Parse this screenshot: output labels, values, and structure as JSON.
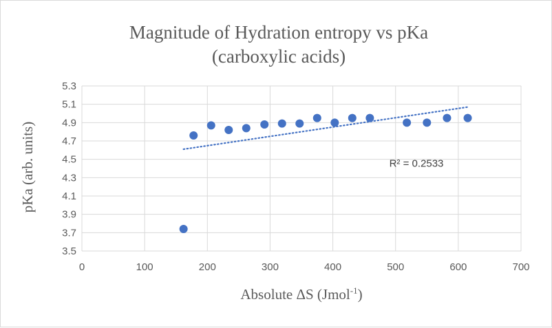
{
  "chart_data": {
    "type": "scatter",
    "title": "Magnitude of Hydration entropy vs pKa",
    "subtitle": "(carboxylic acids)",
    "xlabel_main": "Absolute ΔS (Jmol",
    "xlabel_sup": "-1",
    "xlabel_end": ")",
    "ylabel": "pKa (arb. units)",
    "xlim": [
      0,
      700
    ],
    "ylim": [
      3.5,
      5.3
    ],
    "x_ticks": [
      0,
      100,
      200,
      300,
      400,
      500,
      600,
      700
    ],
    "y_ticks": [
      3.5,
      3.7,
      3.9,
      4.1,
      4.3,
      4.5,
      4.7,
      4.9,
      5.1,
      5.3
    ],
    "grid": "both",
    "legend": "none",
    "marker_color": "#4472c4",
    "trendline_color": "#4472c4",
    "points": [
      {
        "x": 162,
        "y": 3.74
      },
      {
        "x": 178,
        "y": 4.76
      },
      {
        "x": 206,
        "y": 4.87
      },
      {
        "x": 234,
        "y": 4.82
      },
      {
        "x": 262,
        "y": 4.84
      },
      {
        "x": 291,
        "y": 4.88
      },
      {
        "x": 319,
        "y": 4.89
      },
      {
        "x": 347,
        "y": 4.89
      },
      {
        "x": 375,
        "y": 4.95
      },
      {
        "x": 403,
        "y": 4.9
      },
      {
        "x": 431,
        "y": 4.95
      },
      {
        "x": 459,
        "y": 4.95
      },
      {
        "x": 518,
        "y": 4.9
      },
      {
        "x": 550,
        "y": 4.9
      },
      {
        "x": 582,
        "y": 4.95
      },
      {
        "x": 615,
        "y": 4.95
      }
    ],
    "trendline": {
      "type": "linear",
      "x_range": [
        162,
        615
      ],
      "y_start": 4.61,
      "y_end": 5.07,
      "r_squared_label": "R² = 0.2533",
      "r_squared_at": {
        "x": 490,
        "y": 4.42
      }
    }
  }
}
